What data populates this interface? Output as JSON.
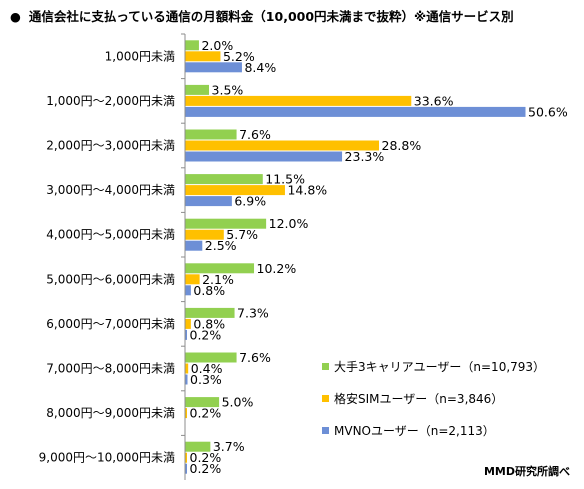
{
  "title": "通信会社に支払っている通信の月額料金（10,000円未満まで抜粋）※通信サービス別",
  "bullet": "●",
  "source": "MMD研究所調べ",
  "chart_data": {
    "type": "bar",
    "orientation": "horizontal",
    "categories": [
      "1,000円未満",
      "1,000円～2,000円未満",
      "2,000円～3,000円未満",
      "3,000円～4,000円未満",
      "4,000円～5,000円未満",
      "5,000円～6,000円未満",
      "6,000円～7,000円未満",
      "7,000円～8,000円未満",
      "8,000円～9,000円未満",
      "9,000円～10,000円未満"
    ],
    "series": [
      {
        "name": "大手3キャリアユーザー（n=10,793）",
        "color": "#92d050",
        "values": [
          2.0,
          3.5,
          7.6,
          11.5,
          12.0,
          10.2,
          7.3,
          7.6,
          5.0,
          3.7
        ]
      },
      {
        "name": "格安SIMユーザー（n=3,846）",
        "color": "#ffc000",
        "values": [
          5.2,
          33.6,
          28.8,
          14.8,
          5.7,
          2.1,
          0.8,
          0.4,
          0.2,
          0.2
        ]
      },
      {
        "name": "MVNOユーザー（n=2,113）",
        "color": "#6d8fd6",
        "values": [
          8.4,
          50.6,
          23.3,
          6.9,
          2.5,
          0.8,
          0.2,
          0.3,
          null,
          0.2
        ]
      }
    ],
    "value_suffix": "%",
    "xlim": [
      0,
      50.6
    ],
    "grid": false,
    "legend_position": "bottom-right"
  }
}
